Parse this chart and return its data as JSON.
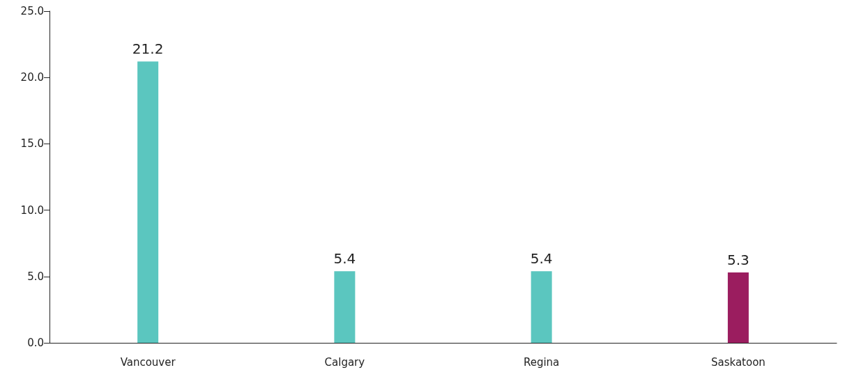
{
  "chart_data": {
    "type": "bar",
    "categories": [
      "Vancouver",
      "Calgary",
      "Regina",
      "Saskatoon"
    ],
    "values": [
      21.2,
      5.4,
      5.4,
      5.3
    ],
    "colors": [
      "#5bc6bf",
      "#5bc6bf",
      "#5bc6bf",
      "#9b1d5f"
    ],
    "ylim": [
      0,
      25
    ],
    "yticks": [
      {
        "value": 0,
        "label": "0.0"
      },
      {
        "value": 5,
        "label": "5.0"
      },
      {
        "value": 10,
        "label": "10.0"
      },
      {
        "value": 15,
        "label": "15.0"
      },
      {
        "value": 20,
        "label": "20.0"
      },
      {
        "value": 25,
        "label": "25.0"
      }
    ],
    "grid": false,
    "data_labels": true
  }
}
